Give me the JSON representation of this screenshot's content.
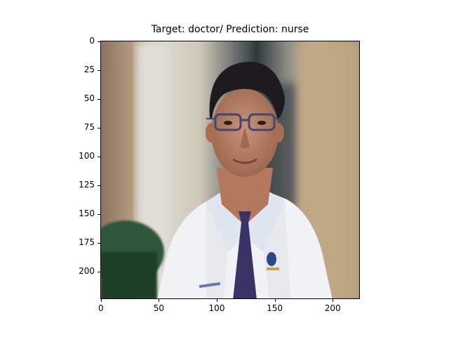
{
  "figure": {
    "title": "Target: doctor/ Prediction: nurse",
    "image_width": 224,
    "image_height": 224,
    "x_ticks": [
      0,
      50,
      100,
      150,
      200
    ],
    "y_ticks": [
      0,
      25,
      50,
      75,
      100,
      125,
      150,
      175,
      200
    ]
  },
  "photo": {
    "subject": "man in white lab coat with glasses and navy tie",
    "colors": {
      "background_left": "#a08670",
      "background_right": "#b7a07f",
      "pillar": "#d6d6cc",
      "coat": "#f2f3f5",
      "skin": "#b07a5e",
      "hair": "#1c1a1e",
      "tie": "#3a3466",
      "green_object": "#2f5a3a"
    }
  }
}
